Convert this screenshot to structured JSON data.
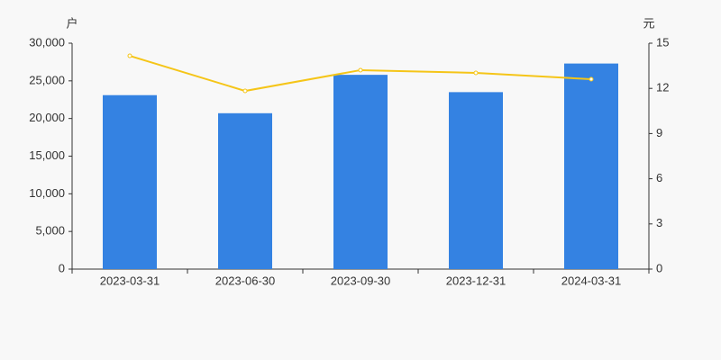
{
  "chart_data": {
    "type": "bar",
    "y_label": "户",
    "y2_label": "元",
    "categories": [
      "2023-03-31",
      "2023-06-30",
      "2023-09-30",
      "2023-12-31",
      "2024-03-31"
    ],
    "series": [
      {
        "type": "bar",
        "color": "#3482e2",
        "values": [
          23100,
          20700,
          25800,
          23500,
          27300
        ]
      },
      {
        "type": "line",
        "axis": "y2",
        "color": "#f5c518",
        "values": [
          14.16,
          11.83,
          13.21,
          13.03,
          12.61
        ]
      }
    ],
    "ylim": [
      0,
      30000
    ],
    "yticks": [
      0,
      {
        "value": 5000,
        "label": "5,000"
      },
      {
        "value": 10000,
        "label": "10,000"
      },
      {
        "value": 15000,
        "label": "15,000"
      },
      {
        "value": 20000,
        "label": "20,000"
      },
      {
        "value": 25000,
        "label": "25,000"
      },
      {
        "value": 30000,
        "label": "30,000"
      }
    ],
    "y2lim": [
      0,
      15
    ],
    "y2ticks": [
      0,
      3,
      6,
      9,
      12,
      15
    ],
    "grid": false
  }
}
